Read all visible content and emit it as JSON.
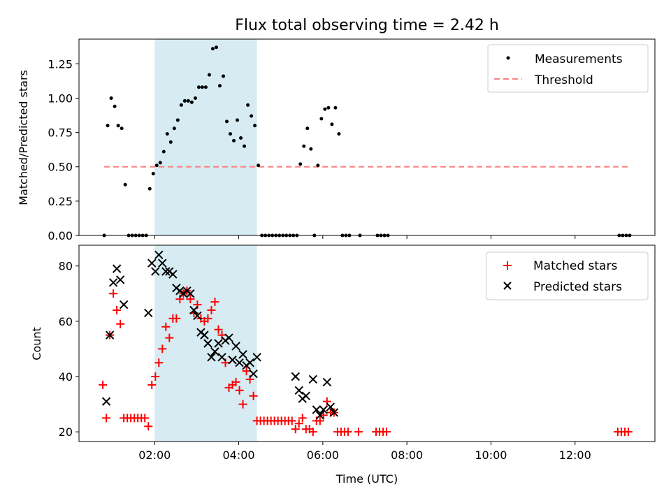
{
  "title": "Flux total observing time = 2.42 h",
  "colors": {
    "measurement": "#000000",
    "threshold": "#ff7f7f",
    "matched": "#ff0000",
    "predicted": "#000000",
    "shade": "#add8e6"
  },
  "chart_data": [
    {
      "type": "scatter",
      "ylabel": "Matched/Predicted stars",
      "ylim": [
        0,
        1.43
      ],
      "yticks": [
        "0.00",
        "0.25",
        "0.50",
        "0.75",
        "1.00",
        "1.25"
      ],
      "xlim": [
        "00:12",
        "13:54"
      ],
      "shaded_interval": [
        "02:00",
        "04:26"
      ],
      "legend": {
        "placement": "upper right",
        "entries": [
          "Measurements",
          "Threshold"
        ]
      },
      "threshold": {
        "name": "Threshold",
        "y": 0.5,
        "x": [
          "00:48",
          "13:18"
        ]
      },
      "series": [
        {
          "name": "Measurements",
          "points": [
            [
              "00:48",
              0.0
            ],
            [
              "00:53",
              0.8
            ],
            [
              "00:58",
              1.0
            ],
            [
              "01:03",
              0.94
            ],
            [
              "01:08",
              0.8
            ],
            [
              "01:13",
              0.78
            ],
            [
              "01:18",
              0.37
            ],
            [
              "01:23",
              0.0
            ],
            [
              "01:28",
              0.0
            ],
            [
              "01:33",
              0.0
            ],
            [
              "01:38",
              0.0
            ],
            [
              "01:43",
              0.0
            ],
            [
              "01:48",
              0.0
            ],
            [
              "01:53",
              0.34
            ],
            [
              "01:58",
              0.45
            ],
            [
              "02:03",
              0.51
            ],
            [
              "02:08",
              0.53
            ],
            [
              "02:13",
              0.61
            ],
            [
              "02:18",
              0.74
            ],
            [
              "02:23",
              0.68
            ],
            [
              "02:28",
              0.78
            ],
            [
              "02:33",
              0.84
            ],
            [
              "02:38",
              0.95
            ],
            [
              "02:43",
              0.98
            ],
            [
              "02:48",
              0.98
            ],
            [
              "02:53",
              0.97
            ],
            [
              "02:58",
              1.0
            ],
            [
              "03:03",
              1.08
            ],
            [
              "03:08",
              1.08
            ],
            [
              "03:13",
              1.08
            ],
            [
              "03:18",
              1.17
            ],
            [
              "03:23",
              1.36
            ],
            [
              "03:28",
              1.37
            ],
            [
              "03:33",
              1.09
            ],
            [
              "03:38",
              1.16
            ],
            [
              "03:43",
              0.83
            ],
            [
              "03:48",
              0.74
            ],
            [
              "03:53",
              0.69
            ],
            [
              "03:58",
              0.84
            ],
            [
              "04:03",
              0.71
            ],
            [
              "04:08",
              0.65
            ],
            [
              "04:13",
              0.95
            ],
            [
              "04:18",
              0.87
            ],
            [
              "04:23",
              0.8
            ],
            [
              "04:28",
              0.51
            ],
            [
              "04:33",
              0.0
            ],
            [
              "04:38",
              0.0
            ],
            [
              "04:43",
              0.0
            ],
            [
              "04:48",
              0.0
            ],
            [
              "04:53",
              0.0
            ],
            [
              "04:58",
              0.0
            ],
            [
              "05:03",
              0.0
            ],
            [
              "05:08",
              0.0
            ],
            [
              "05:13",
              0.0
            ],
            [
              "05:18",
              0.0
            ],
            [
              "05:23",
              0.0
            ],
            [
              "05:28",
              0.52
            ],
            [
              "05:33",
              0.65
            ],
            [
              "05:38",
              0.78
            ],
            [
              "05:43",
              0.63
            ],
            [
              "05:48",
              0.0
            ],
            [
              "05:53",
              0.51
            ],
            [
              "05:58",
              0.85
            ],
            [
              "06:03",
              0.92
            ],
            [
              "06:08",
              0.93
            ],
            [
              "06:13",
              0.81
            ],
            [
              "06:18",
              0.93
            ],
            [
              "06:23",
              0.74
            ],
            [
              "06:28",
              0.0
            ],
            [
              "06:33",
              0.0
            ],
            [
              "06:38",
              0.0
            ],
            [
              "06:53",
              0.0
            ],
            [
              "07:18",
              0.0
            ],
            [
              "07:23",
              0.0
            ],
            [
              "07:28",
              0.0
            ],
            [
              "07:33",
              0.0
            ],
            [
              "13:03",
              0.0
            ],
            [
              "13:08",
              0.0
            ],
            [
              "13:13",
              0.0
            ],
            [
              "13:18",
              0.0
            ]
          ]
        }
      ]
    },
    {
      "type": "scatter",
      "xlabel": "Time (UTC)",
      "ylabel": "Count",
      "ylim": [
        16.5,
        87.5
      ],
      "yticks": [
        "20",
        "40",
        "60",
        "80"
      ],
      "xticks": [
        "02:00",
        "04:00",
        "06:00",
        "08:00",
        "10:00",
        "12:00"
      ],
      "xlim": [
        "00:12",
        "13:54"
      ],
      "shaded_interval": [
        "02:00",
        "04:26"
      ],
      "legend": {
        "placement": "upper right",
        "entries": [
          "Matched stars",
          "Predicted stars"
        ]
      },
      "series": [
        {
          "name": "Matched stars",
          "marker": "plus",
          "points": [
            [
              "00:46",
              37
            ],
            [
              "00:51",
              25
            ],
            [
              "00:56",
              55
            ],
            [
              "01:01",
              70
            ],
            [
              "01:06",
              64
            ],
            [
              "01:11",
              59
            ],
            [
              "01:16",
              25
            ],
            [
              "01:21",
              25
            ],
            [
              "01:26",
              25
            ],
            [
              "01:31",
              25
            ],
            [
              "01:36",
              25
            ],
            [
              "01:41",
              25
            ],
            [
              "01:46",
              25
            ],
            [
              "01:51",
              22
            ],
            [
              "01:56",
              37
            ],
            [
              "02:01",
              40
            ],
            [
              "02:06",
              45
            ],
            [
              "02:11",
              50
            ],
            [
              "02:16",
              58
            ],
            [
              "02:21",
              54
            ],
            [
              "02:26",
              61
            ],
            [
              "02:31",
              61
            ],
            [
              "02:36",
              68
            ],
            [
              "02:41",
              70
            ],
            [
              "02:46",
              71
            ],
            [
              "02:51",
              68
            ],
            [
              "02:56",
              63
            ],
            [
              "03:01",
              66
            ],
            [
              "03:06",
              61
            ],
            [
              "03:11",
              60
            ],
            [
              "03:16",
              61
            ],
            [
              "03:21",
              64
            ],
            [
              "03:26",
              67
            ],
            [
              "03:31",
              57
            ],
            [
              "03:36",
              55
            ],
            [
              "03:41",
              45
            ],
            [
              "03:46",
              36
            ],
            [
              "03:51",
              37
            ],
            [
              "03:56",
              38
            ],
            [
              "04:01",
              35
            ],
            [
              "04:06",
              30
            ],
            [
              "04:11",
              42
            ],
            [
              "04:16",
              39
            ],
            [
              "04:21",
              33
            ],
            [
              "04:26",
              24
            ],
            [
              "04:31",
              24
            ],
            [
              "04:36",
              24
            ],
            [
              "04:41",
              24
            ],
            [
              "04:46",
              24
            ],
            [
              "04:51",
              24
            ],
            [
              "04:56",
              24
            ],
            [
              "05:01",
              24
            ],
            [
              "05:06",
              24
            ],
            [
              "05:11",
              24
            ],
            [
              "05:16",
              24
            ],
            [
              "05:21",
              21
            ],
            [
              "05:26",
              23
            ],
            [
              "05:31",
              25
            ],
            [
              "05:36",
              21
            ],
            [
              "05:41",
              21
            ],
            [
              "05:46",
              20
            ],
            [
              "05:51",
              24
            ],
            [
              "05:56",
              24
            ],
            [
              "06:01",
              26
            ],
            [
              "06:06",
              31
            ],
            [
              "06:11",
              27
            ],
            [
              "06:16",
              27
            ],
            [
              "06:21",
              20
            ],
            [
              "06:26",
              20
            ],
            [
              "06:31",
              20
            ],
            [
              "06:36",
              20
            ],
            [
              "06:51",
              20
            ],
            [
              "07:16",
              20
            ],
            [
              "07:21",
              20
            ],
            [
              "07:26",
              20
            ],
            [
              "07:31",
              20
            ],
            [
              "13:01",
              20
            ],
            [
              "13:06",
              20
            ],
            [
              "13:11",
              20
            ],
            [
              "13:16",
              20
            ]
          ]
        },
        {
          "name": "Predicted stars",
          "marker": "x",
          "points": [
            [
              "00:51",
              31
            ],
            [
              "00:56",
              55
            ],
            [
              "01:01",
              74
            ],
            [
              "01:06",
              79
            ],
            [
              "01:11",
              75
            ],
            [
              "01:16",
              66
            ],
            [
              "01:51",
              63
            ],
            [
              "01:56",
              81
            ],
            [
              "02:01",
              78
            ],
            [
              "02:06",
              84
            ],
            [
              "02:11",
              81
            ],
            [
              "02:16",
              78
            ],
            [
              "02:21",
              78
            ],
            [
              "02:26",
              77
            ],
            [
              "02:31",
              72
            ],
            [
              "02:36",
              71
            ],
            [
              "02:41",
              70
            ],
            [
              "02:46",
              71
            ],
            [
              "02:51",
              70
            ],
            [
              "02:56",
              64
            ],
            [
              "03:01",
              62
            ],
            [
              "03:06",
              56
            ],
            [
              "03:11",
              55
            ],
            [
              "03:16",
              52
            ],
            [
              "03:21",
              47
            ],
            [
              "03:26",
              49
            ],
            [
              "03:31",
              52
            ],
            [
              "03:36",
              47
            ],
            [
              "03:41",
              53
            ],
            [
              "03:46",
              54
            ],
            [
              "03:51",
              46
            ],
            [
              "03:56",
              51
            ],
            [
              "04:01",
              45
            ],
            [
              "04:06",
              48
            ],
            [
              "04:11",
              44
            ],
            [
              "04:16",
              45
            ],
            [
              "04:21",
              41
            ],
            [
              "04:26",
              47
            ],
            [
              "05:21",
              40
            ],
            [
              "05:26",
              35
            ],
            [
              "05:31",
              32
            ],
            [
              "05:36",
              33
            ],
            [
              "05:46",
              39
            ],
            [
              "05:51",
              28
            ],
            [
              "05:56",
              26
            ],
            [
              "06:01",
              28
            ],
            [
              "06:06",
              38
            ],
            [
              "06:11",
              29
            ],
            [
              "06:16",
              27
            ]
          ]
        }
      ]
    }
  ]
}
